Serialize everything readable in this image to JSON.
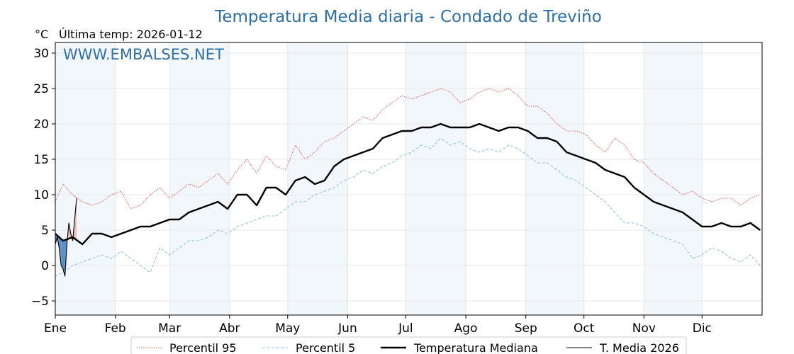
{
  "title": "Temperatura Media diaria - Condado de Treviño",
  "unit_label": "°C",
  "last_temp_label": "Última temp: 2026-01-12",
  "watermark": "WWW.EMBALSES.NET",
  "colors": {
    "title": "#2e6fa7",
    "p95": "#e8322a",
    "p5": "#8fc4dd",
    "median": "#000000",
    "current": "#000000",
    "fill_above": "#f2b8b8",
    "fill_below": "#5b8ec4",
    "band": "#f2f7fc",
    "grid": "#e6e6e6"
  },
  "chart_data": {
    "type": "line",
    "title": "Temperatura Media diaria - Condado de Treviño",
    "ylabel": "°C",
    "xlabel": "",
    "ylim": [
      -7,
      31.5
    ],
    "xlim": [
      1,
      366
    ],
    "grid": true,
    "legend_position": "bottom",
    "yticks": [
      -5,
      0,
      5,
      10,
      15,
      20,
      25,
      30
    ],
    "ytick_labels": [
      "−5",
      "0",
      "5",
      "10",
      "15",
      "20",
      "25",
      "30"
    ],
    "months": [
      "Ene",
      "Feb",
      "Mar",
      "Abr",
      "May",
      "Jun",
      "Jul",
      "Ago",
      "Sep",
      "Oct",
      "Nov",
      "Dic"
    ],
    "month_start_days": [
      1,
      32,
      60,
      91,
      121,
      152,
      182,
      213,
      244,
      274,
      305,
      335
    ],
    "series": [
      {
        "name": "Percentil 95",
        "style": "dotted-thin",
        "x": [
          1,
          5,
          10,
          15,
          20,
          25,
          30,
          35,
          40,
          45,
          50,
          55,
          60,
          65,
          70,
          75,
          80,
          85,
          90,
          95,
          100,
          105,
          110,
          115,
          120,
          125,
          130,
          135,
          140,
          145,
          150,
          155,
          160,
          165,
          170,
          175,
          180,
          185,
          190,
          195,
          200,
          205,
          210,
          215,
          220,
          225,
          230,
          235,
          240,
          245,
          250,
          255,
          260,
          265,
          270,
          275,
          280,
          285,
          290,
          295,
          300,
          305,
          310,
          315,
          320,
          325,
          330,
          335,
          340,
          345,
          350,
          355,
          360,
          365
        ],
        "y": [
          9.0,
          11.5,
          10.0,
          9.0,
          8.5,
          9.0,
          10.0,
          10.5,
          8.0,
          8.5,
          10.0,
          11.0,
          9.5,
          10.5,
          11.5,
          11.0,
          12.0,
          13.0,
          11.5,
          13.5,
          15.0,
          13.0,
          15.5,
          14.0,
          13.5,
          17.0,
          15.0,
          16.0,
          17.5,
          18.0,
          19.0,
          20.0,
          21.0,
          20.5,
          22.0,
          23.0,
          24.0,
          23.5,
          24.0,
          24.5,
          25.0,
          24.5,
          23.0,
          23.5,
          24.5,
          25.0,
          24.5,
          25.0,
          24.0,
          22.5,
          22.5,
          21.5,
          20.0,
          19.0,
          19.0,
          18.5,
          17.0,
          16.0,
          18.0,
          17.0,
          15.0,
          14.5,
          13.0,
          12.0,
          11.0,
          10.0,
          10.5,
          9.5,
          9.0,
          9.5,
          9.5,
          8.5,
          9.5,
          10.0
        ]
      },
      {
        "name": "Percentil 5",
        "style": "dashed-thin",
        "x": [
          1,
          5,
          10,
          15,
          20,
          25,
          30,
          35,
          40,
          45,
          50,
          55,
          60,
          65,
          70,
          75,
          80,
          85,
          90,
          95,
          100,
          105,
          110,
          115,
          120,
          125,
          130,
          135,
          140,
          145,
          150,
          155,
          160,
          165,
          170,
          175,
          180,
          185,
          190,
          195,
          200,
          205,
          210,
          215,
          220,
          225,
          230,
          235,
          240,
          245,
          250,
          255,
          260,
          265,
          270,
          275,
          280,
          285,
          290,
          295,
          300,
          305,
          310,
          315,
          320,
          325,
          330,
          335,
          340,
          345,
          350,
          355,
          360,
          365
        ],
        "y": [
          -1.5,
          -1.0,
          0.0,
          0.5,
          1.0,
          1.5,
          1.0,
          2.0,
          1.0,
          0.0,
          -1.0,
          2.5,
          1.5,
          2.5,
          3.5,
          3.5,
          4.0,
          5.0,
          4.5,
          5.5,
          6.0,
          6.5,
          7.0,
          7.0,
          8.0,
          9.0,
          9.0,
          10.0,
          10.5,
          11.0,
          12.0,
          12.5,
          13.5,
          13.0,
          14.0,
          14.5,
          15.5,
          16.0,
          17.0,
          16.5,
          18.0,
          17.0,
          17.5,
          16.5,
          16.0,
          16.5,
          16.0,
          17.0,
          16.5,
          15.5,
          14.5,
          14.5,
          13.5,
          12.5,
          12.0,
          11.0,
          10.0,
          9.0,
          7.5,
          6.0,
          6.0,
          5.5,
          4.5,
          4.0,
          3.5,
          3.0,
          1.0,
          1.5,
          2.5,
          2.0,
          1.0,
          0.5,
          1.5,
          0.0
        ]
      },
      {
        "name": "Temperatura Mediana",
        "style": "solid-thick",
        "x": [
          1,
          5,
          10,
          15,
          20,
          25,
          30,
          35,
          40,
          45,
          50,
          55,
          60,
          65,
          70,
          75,
          80,
          85,
          90,
          95,
          100,
          105,
          110,
          115,
          120,
          125,
          130,
          135,
          140,
          145,
          150,
          155,
          160,
          165,
          170,
          175,
          180,
          185,
          190,
          195,
          200,
          205,
          210,
          215,
          220,
          225,
          230,
          235,
          240,
          245,
          250,
          255,
          260,
          265,
          270,
          275,
          280,
          285,
          290,
          295,
          300,
          305,
          310,
          315,
          320,
          325,
          330,
          335,
          340,
          345,
          350,
          355,
          360,
          365
        ],
        "y": [
          4.5,
          3.5,
          4.0,
          3.0,
          4.5,
          4.5,
          4.0,
          4.5,
          5.0,
          5.5,
          5.5,
          6.0,
          6.5,
          6.5,
          7.5,
          8.0,
          8.5,
          9.0,
          8.0,
          10.0,
          10.0,
          8.5,
          11.0,
          11.0,
          10.0,
          12.0,
          12.5,
          11.5,
          12.0,
          14.0,
          15.0,
          15.5,
          16.0,
          16.5,
          18.0,
          18.5,
          19.0,
          19.0,
          19.5,
          19.5,
          20.0,
          19.5,
          19.5,
          19.5,
          20.0,
          19.5,
          19.0,
          19.5,
          19.5,
          19.0,
          18.0,
          18.0,
          17.5,
          16.0,
          15.5,
          15.0,
          14.5,
          13.5,
          13.0,
          12.5,
          11.0,
          10.0,
          9.0,
          8.5,
          8.0,
          7.5,
          6.5,
          5.5,
          5.5,
          6.0,
          5.5,
          5.5,
          6.0,
          5.0
        ]
      },
      {
        "name": "T. Media 2026",
        "style": "solid-thin",
        "x": [
          1,
          2,
          3,
          4,
          5,
          6,
          7,
          8,
          9,
          10,
          11,
          12
        ],
        "y": [
          3.0,
          4.0,
          2.5,
          0.0,
          -0.5,
          -1.5,
          3.0,
          6.0,
          4.5,
          3.5,
          6.5,
          9.5
        ]
      }
    ],
    "legend": [
      "Percentil 95",
      "Percentil 5",
      "Temperatura Mediana",
      "T. Media 2026"
    ]
  }
}
